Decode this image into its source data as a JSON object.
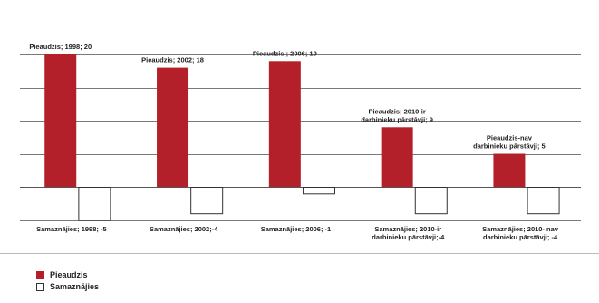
{
  "chart_data": {
    "type": "bar",
    "categories": [
      "1998",
      "2002",
      "2006",
      "2010-ir darbinieku pārstāvji",
      "2010-nav darbinieku pārstāvji"
    ],
    "series": [
      {
        "name": "Pieaudzis",
        "color": "#b3202a",
        "values": [
          20,
          18,
          19,
          9,
          5
        ],
        "labels": [
          [
            "Pieaudzis; 1998; 20"
          ],
          [
            "Pieaudzis; 2002; 18"
          ],
          [
            "Pieaudzis ; 2006; 19"
          ],
          [
            "Pieaudzis; 2010-ir",
            "darbinieku pārstāvji; 9"
          ],
          [
            "Pieaudzis-nav",
            "darbinieku pārstāvji; 5"
          ]
        ]
      },
      {
        "name": "Samaznājies",
        "color": "#ffffff",
        "values": [
          -5,
          -4,
          -1,
          -4,
          -4
        ],
        "labels": [
          [
            "Samaznājies; 1998; -5"
          ],
          [
            "Samaznājies; 2002;-4"
          ],
          [
            "Samaznājies; 2006; -1"
          ],
          [
            "Samaznājies; 2010-ir",
            "darbinieku pārstāvji;-4"
          ],
          [
            "Samaznājies; 2010- nav",
            "darbinieku pārstāvji; -4"
          ]
        ]
      }
    ],
    "ylim": [
      -5,
      20
    ],
    "grid": true,
    "legend_position": "bottom-left"
  },
  "legend": {
    "positive_label": "Pieaudzis",
    "negative_label": "Samaznājies"
  }
}
